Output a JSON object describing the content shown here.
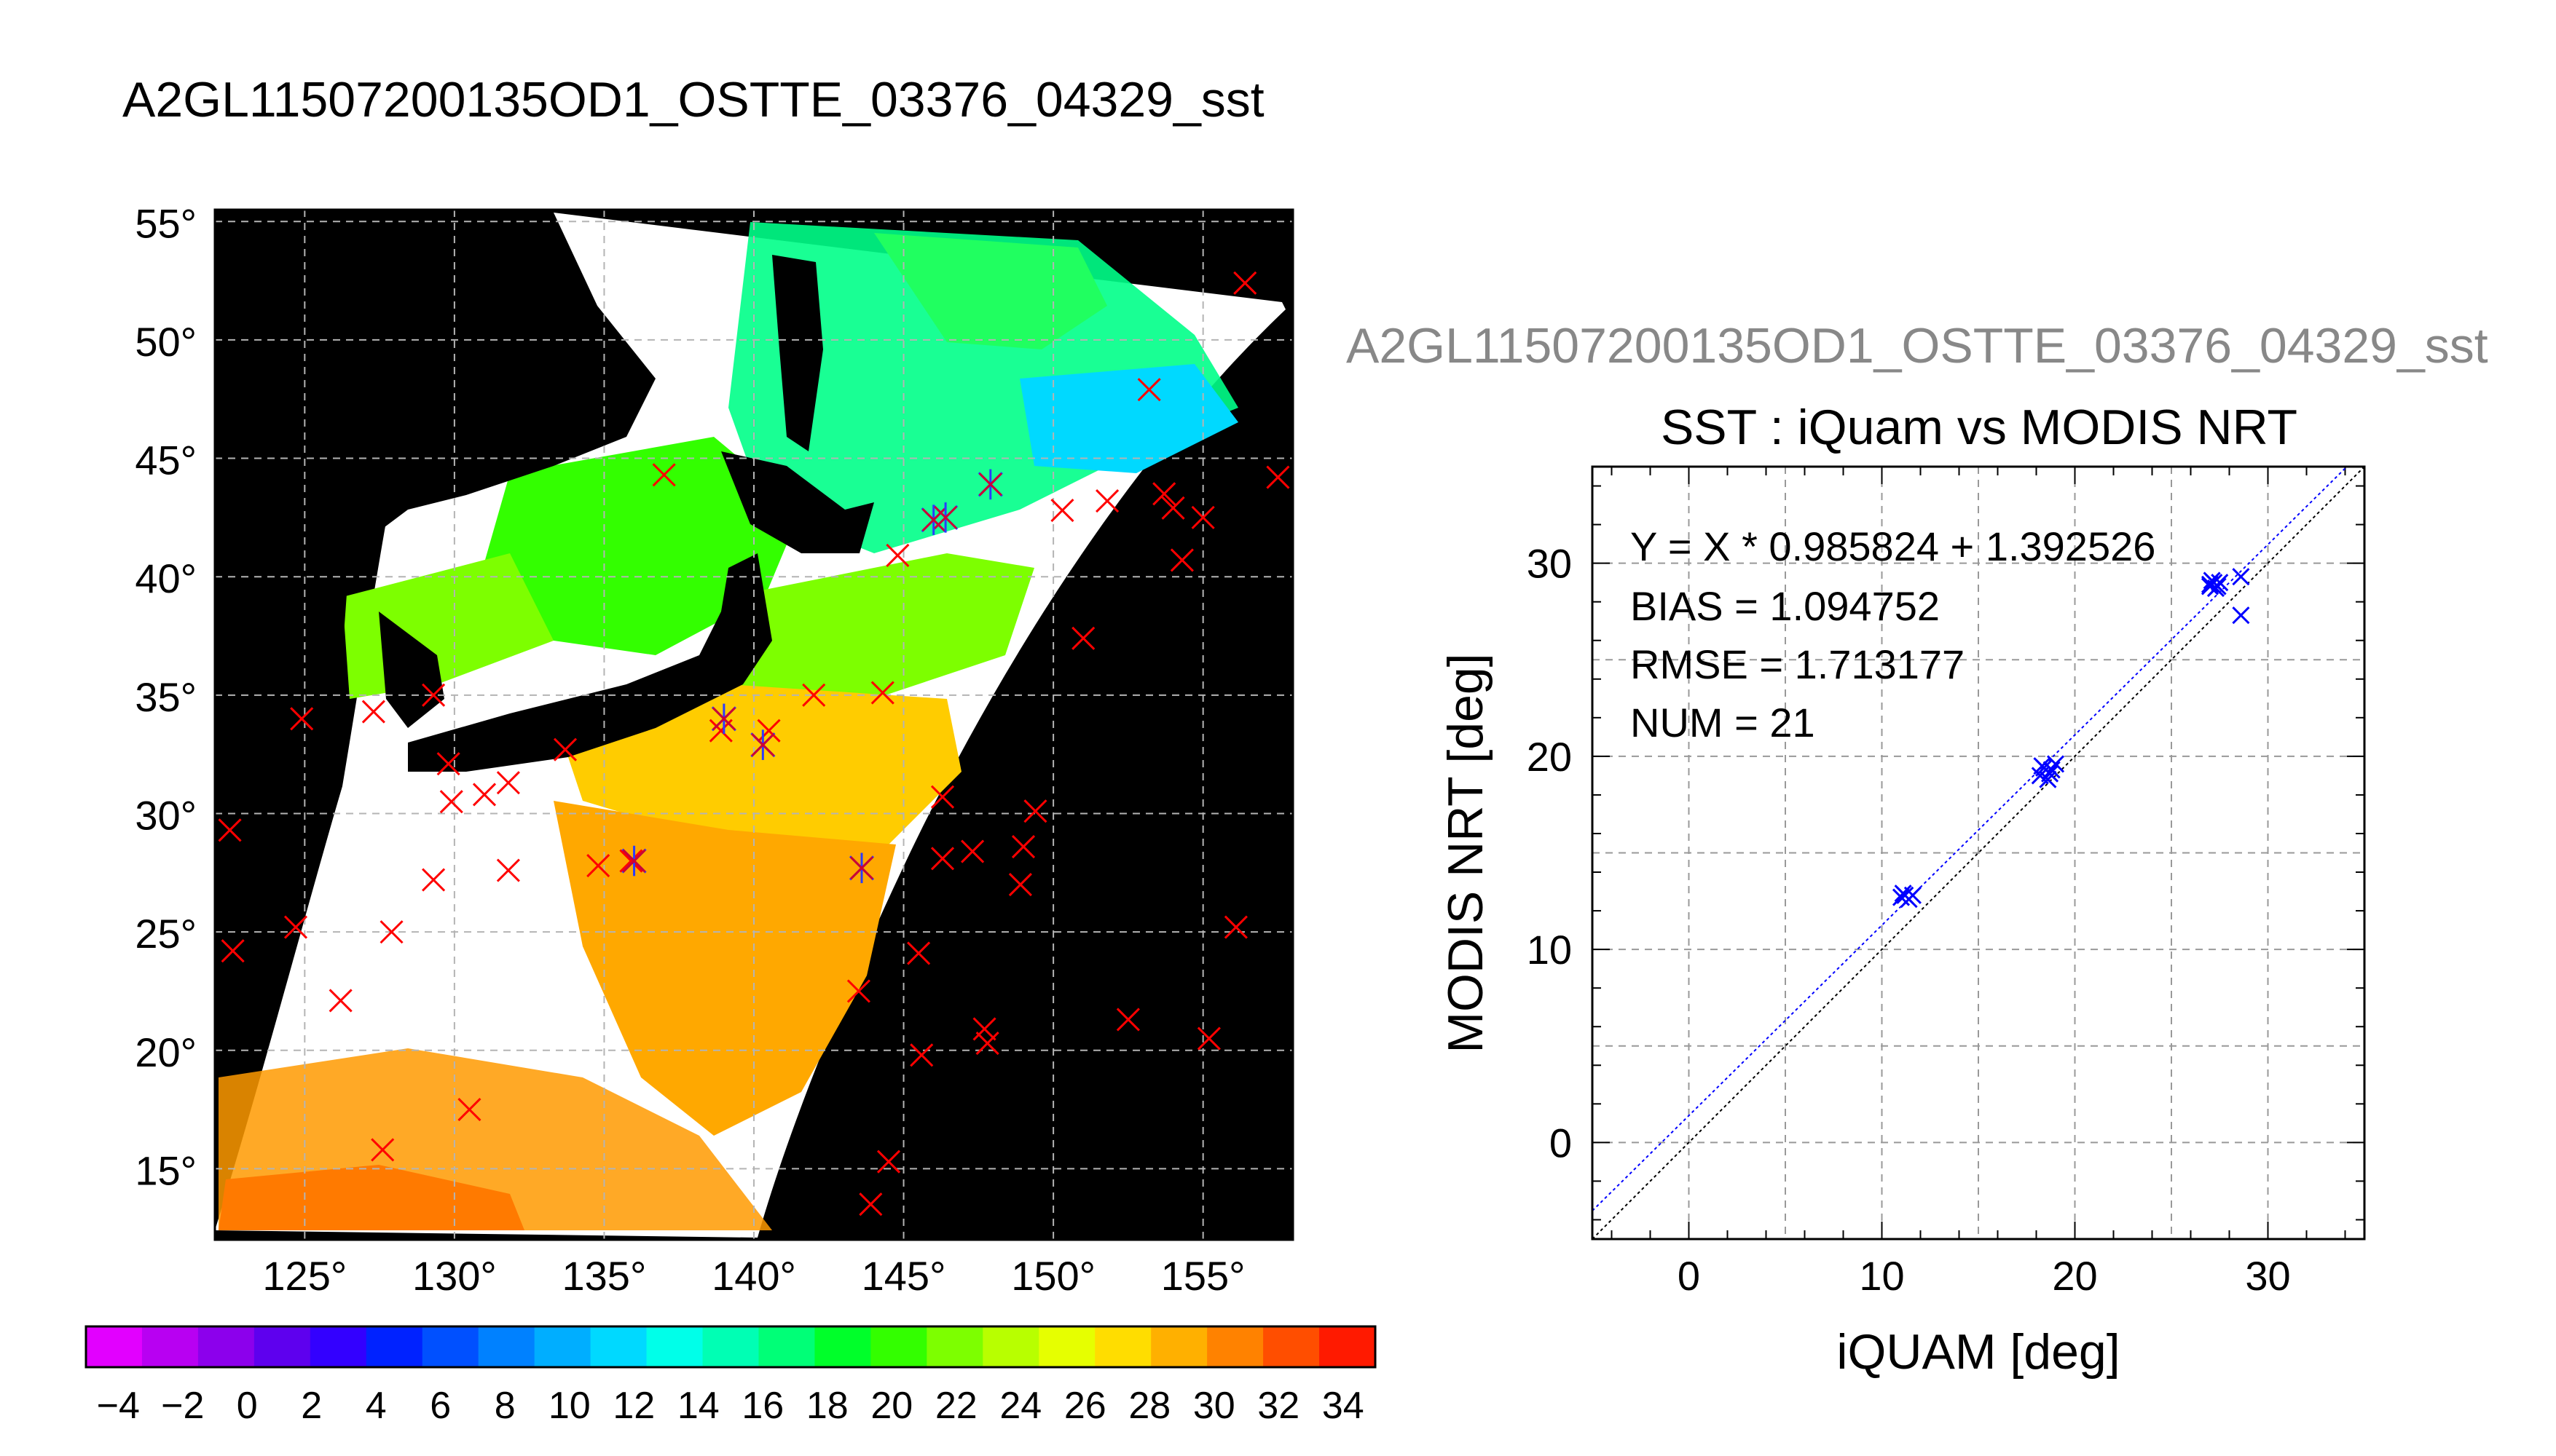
{
  "map": {
    "title": "A2GL11507200135OD1_OSTTE_03376_04329_sst",
    "lon_ticks": [
      125,
      130,
      135,
      140,
      145,
      150,
      155
    ],
    "lat_ticks": [
      15,
      20,
      25,
      30,
      35,
      40,
      45,
      50,
      55
    ],
    "lon_range": [
      122,
      158
    ],
    "lat_range": [
      12,
      55.5
    ],
    "degree_symbol": "°",
    "colorbar": {
      "ticks": [
        -4,
        -2,
        0,
        2,
        4,
        6,
        8,
        10,
        12,
        14,
        16,
        18,
        20,
        22,
        24,
        26,
        28,
        30,
        32,
        34
      ],
      "range": [
        -5,
        35
      ],
      "colors": [
        "#e200ff",
        "#b800f2",
        "#8c00ec",
        "#5e00ee",
        "#3300ff",
        "#0022ff",
        "#0050ff",
        "#0081ff",
        "#00aeff",
        "#00d9ff",
        "#00ffe9",
        "#00ffb4",
        "#00ff77",
        "#00ff2a",
        "#33ff00",
        "#7dff00",
        "#b8ff00",
        "#e6ff00",
        "#ffdd00",
        "#ffb000",
        "#ff8200",
        "#ff4e00",
        "#ff1a00"
      ]
    },
    "red_markers": [
      [
        122.5,
        29.3
      ],
      [
        122.6,
        24.2
      ],
      [
        124.9,
        34.0
      ],
      [
        124.7,
        25.2
      ],
      [
        126.2,
        22.1
      ],
      [
        127.3,
        34.3
      ],
      [
        127.9,
        25.0
      ],
      [
        127.6,
        15.8
      ],
      [
        129.3,
        35.0
      ],
      [
        129.8,
        32.1
      ],
      [
        129.9,
        30.5
      ],
      [
        129.3,
        27.2
      ],
      [
        131.0,
        30.8
      ],
      [
        131.8,
        31.3
      ],
      [
        131.8,
        27.6
      ],
      [
        130.5,
        17.5
      ],
      [
        133.7,
        32.7
      ],
      [
        134.8,
        27.8
      ],
      [
        135.9,
        28.0
      ],
      [
        137.0,
        44.3
      ],
      [
        140.5,
        33.5
      ],
      [
        142.0,
        35.0
      ],
      [
        143.5,
        22.5
      ],
      [
        143.9,
        13.5
      ],
      [
        144.3,
        35.1
      ],
      [
        144.5,
        15.3
      ],
      [
        145.5,
        24.1
      ],
      [
        145.6,
        19.8
      ],
      [
        146.3,
        28.1
      ],
      [
        146.3,
        30.7
      ],
      [
        147.3,
        28.4
      ],
      [
        147.7,
        20.9
      ],
      [
        147.8,
        20.3
      ],
      [
        148.9,
        27.0
      ],
      [
        149.0,
        28.6
      ],
      [
        149.4,
        30.1
      ],
      [
        150.3,
        42.8
      ],
      [
        151.0,
        37.4
      ],
      [
        151.8,
        43.2
      ],
      [
        152.5,
        21.3
      ],
      [
        153.2,
        47.9
      ],
      [
        153.7,
        43.5
      ],
      [
        154.0,
        42.9
      ],
      [
        154.3,
        40.7
      ],
      [
        155.0,
        42.5
      ],
      [
        155.2,
        20.5
      ],
      [
        156.1,
        25.2
      ],
      [
        156.4,
        52.4
      ],
      [
        157.5,
        44.2
      ],
      [
        144.8,
        40.9
      ],
      [
        138.9,
        33.5
      ]
    ],
    "blue_markers": [
      [
        136.0,
        28.0
      ],
      [
        139.0,
        34.0
      ],
      [
        140.3,
        32.9
      ],
      [
        143.6,
        27.7
      ],
      [
        146.0,
        42.4
      ],
      [
        146.4,
        42.5
      ],
      [
        147.9,
        43.9
      ]
    ]
  },
  "scatter": {
    "source_label": "A2GL11507200135OD1_OSTTE_03376_04329_sst",
    "title": "SST : iQuam vs MODIS NRT",
    "xlabel": "iQUAM [deg]",
    "ylabel": "MODIS NRT [deg]",
    "stats": [
      "Y = X * 0.985824 + 1.392526",
      "BIAS = 1.094752",
      "RMSE = 1.713177",
      "NUM = 21"
    ]
  },
  "chart_data": {
    "type": "scatter",
    "title": "SST : iQuam vs MODIS NRT",
    "xlabel": "iQUAM [deg]",
    "ylabel": "MODIS NRT [deg]",
    "xlim": [
      -5,
      35
    ],
    "ylim": [
      -5,
      35
    ],
    "xticks": [
      0,
      10,
      20,
      30
    ],
    "yticks": [
      0,
      10,
      20,
      30
    ],
    "grid": true,
    "fit": {
      "slope": 0.985824,
      "intercept": 1.392526
    },
    "points": [
      [
        11.0,
        12.7
      ],
      [
        11.2,
        12.8
      ],
      [
        11.4,
        12.6
      ],
      [
        11.6,
        12.8
      ],
      [
        11.1,
        12.9
      ],
      [
        18.2,
        19.0
      ],
      [
        18.4,
        19.4
      ],
      [
        18.6,
        18.8
      ],
      [
        18.8,
        19.3
      ],
      [
        19.0,
        19.6
      ],
      [
        18.3,
        19.5
      ],
      [
        18.7,
        19.1
      ],
      [
        27.0,
        28.9
      ],
      [
        27.2,
        29.0
      ],
      [
        27.4,
        28.8
      ],
      [
        27.1,
        29.1
      ],
      [
        27.3,
        28.7
      ],
      [
        27.5,
        29.0
      ],
      [
        27.0,
        28.8
      ],
      [
        28.6,
        29.3
      ],
      [
        28.6,
        27.3
      ]
    ]
  }
}
